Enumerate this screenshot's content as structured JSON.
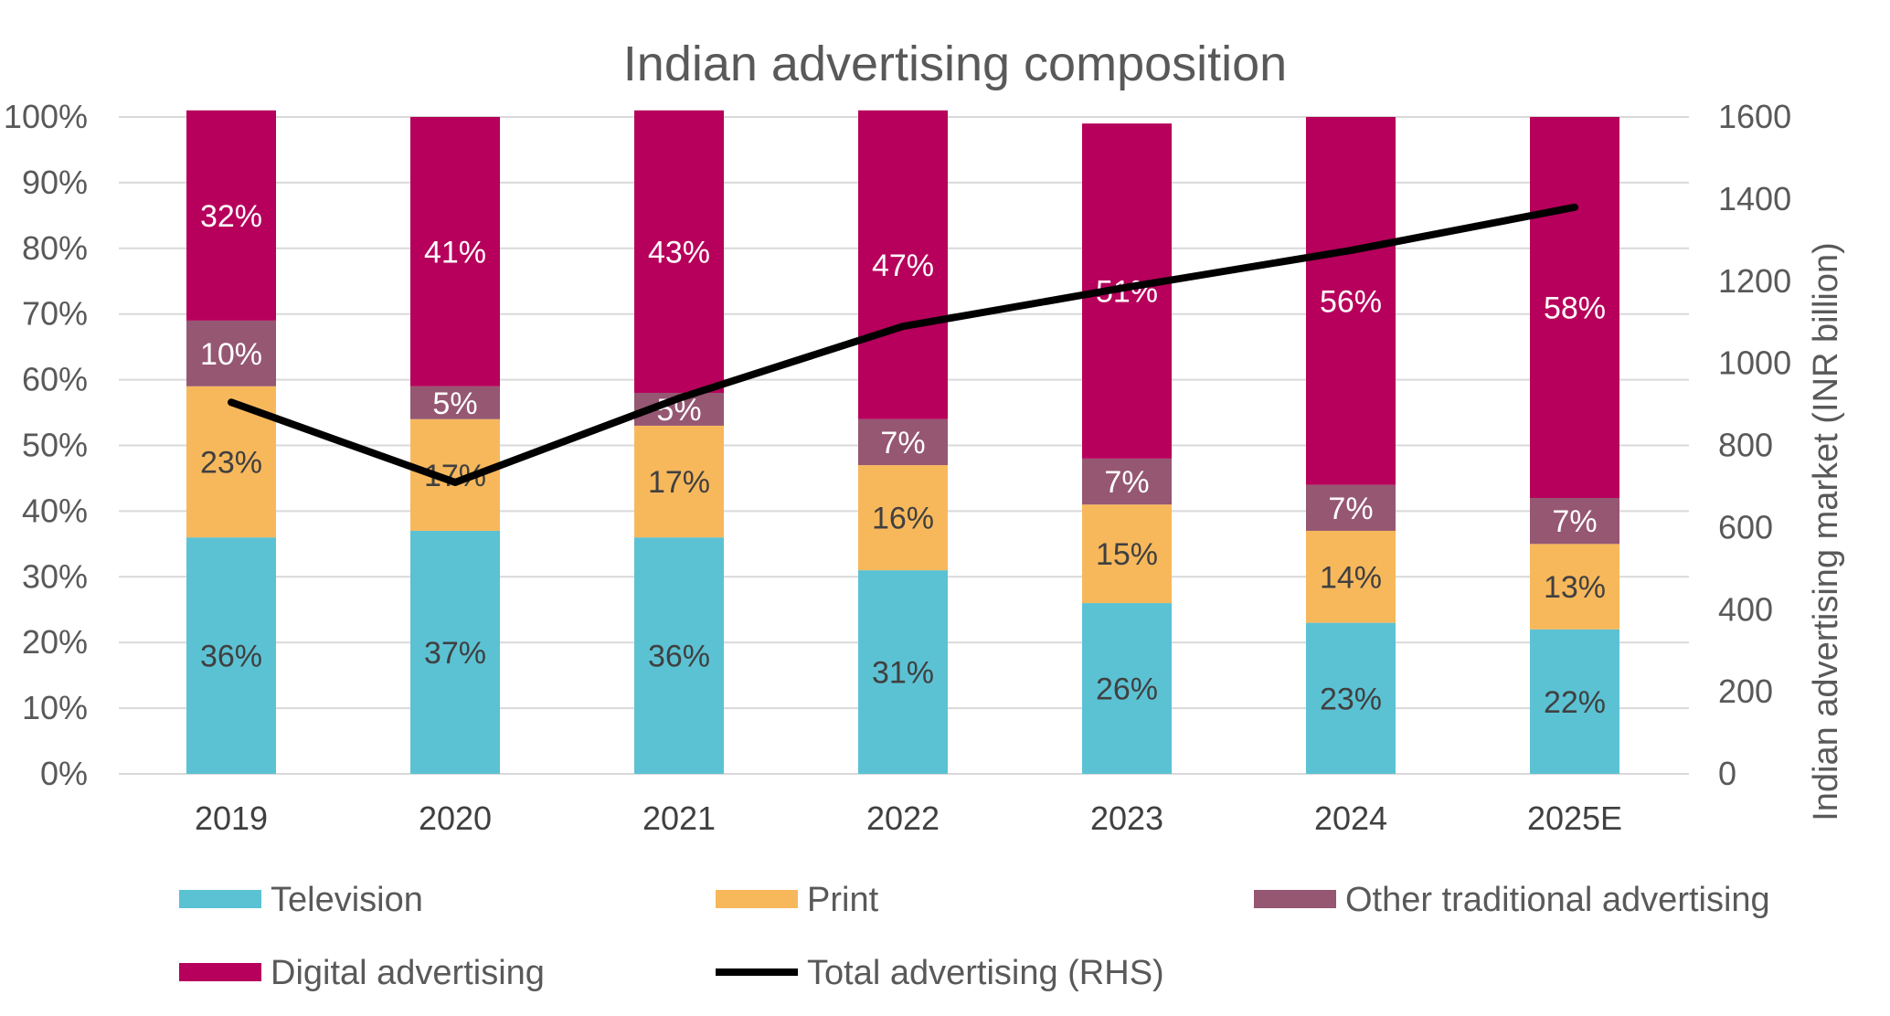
{
  "chart_data": {
    "type": "bar",
    "stacked": true,
    "title": "Indian advertising composition",
    "categories": [
      "2019",
      "2020",
      "2021",
      "2022",
      "2023",
      "2024",
      "2025E"
    ],
    "series": [
      {
        "name": "Television",
        "color": "#5BC2D4",
        "label_color": "#404040",
        "values": [
          36,
          37,
          36,
          31,
          26,
          23,
          22
        ],
        "labels": [
          "36%",
          "37%",
          "36%",
          "31%",
          "26%",
          "23%",
          "22%"
        ]
      },
      {
        "name": "Print",
        "color": "#F7B85C",
        "label_color": "#404040",
        "values": [
          23,
          17,
          17,
          16,
          15,
          14,
          13
        ],
        "labels": [
          "23%",
          "17%",
          "17%",
          "16%",
          "15%",
          "14%",
          "13%"
        ]
      },
      {
        "name": "Other traditional advertising",
        "color": "#955772",
        "label_color": "#ffffff",
        "values": [
          10,
          5,
          5,
          7,
          7,
          7,
          7
        ],
        "labels": [
          "10%",
          "5%",
          "5%",
          "7%",
          "7%",
          "7%",
          "7%"
        ]
      },
      {
        "name": "Digital advertising",
        "color": "#B6005B",
        "label_color": "#ffffff",
        "values": [
          32,
          41,
          43,
          47,
          51,
          56,
          58
        ],
        "labels": [
          "32%",
          "41%",
          "43%",
          "47%",
          "51%",
          "56%",
          "58%"
        ]
      }
    ],
    "line_series": {
      "name": "Total advertising (RHS)",
      "color": "#000000",
      "axis": "right",
      "values": [
        905,
        710,
        915,
        1090,
        1185,
        1275,
        1380
      ]
    },
    "left_axis": {
      "ylim": [
        0,
        100
      ],
      "ticks": [
        "0%",
        "10%",
        "20%",
        "30%",
        "40%",
        "50%",
        "60%",
        "70%",
        "80%",
        "90%",
        "100%"
      ]
    },
    "right_axis": {
      "ylim": [
        0,
        1600
      ],
      "ticks": [
        "0",
        "200",
        "400",
        "600",
        "800",
        "1000",
        "1200",
        "1400",
        "1600"
      ],
      "ylabel": "Indian advertising market (INR billion)"
    },
    "grid": true,
    "legend_position": "bottom"
  }
}
